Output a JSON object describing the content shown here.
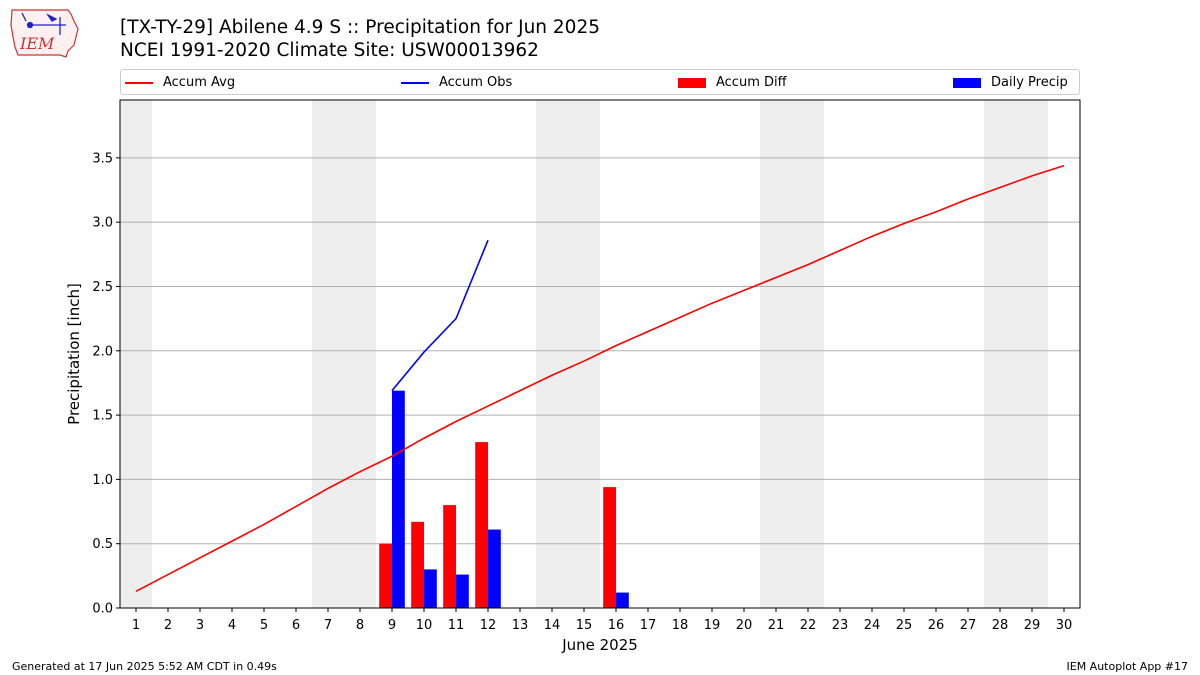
{
  "header": {
    "title_line1": "[TX-TY-29] Abilene 4.9 S :: Precipitation for Jun 2025",
    "title_line2": "NCEI 1991-2020 Climate Site: USW00013962",
    "logo_text": "IEM"
  },
  "footer": {
    "generated": "Generated at 17 Jun 2025 5:52 AM CDT in 0.49s",
    "app": "IEM Autoplot App #17"
  },
  "legend": {
    "placement": "top",
    "items": [
      {
        "label": "Accum Avg",
        "color": "#ff0000",
        "kind": "line"
      },
      {
        "label": "Accum Obs",
        "color": "#0000ff",
        "kind": "line"
      },
      {
        "label": "Accum Diff",
        "color": "#ff0000",
        "kind": "bar"
      },
      {
        "label": "Daily Precip",
        "color": "#0000ff",
        "kind": "bar"
      }
    ]
  },
  "chart_data": {
    "type": "bar",
    "xlabel": "June 2025",
    "ylabel": "Precipitation [inch]",
    "xlim": [
      0.5,
      30.5
    ],
    "ylim": [
      0,
      3.95
    ],
    "yticks": [
      0.0,
      0.5,
      1.0,
      1.5,
      2.0,
      2.5,
      3.0,
      3.5
    ],
    "ytick_labels": [
      "0.0",
      "0.5",
      "1.0",
      "1.5",
      "2.0",
      "2.5",
      "3.0",
      "3.5"
    ],
    "x": [
      1,
      2,
      3,
      4,
      5,
      6,
      7,
      8,
      9,
      10,
      11,
      12,
      13,
      14,
      15,
      16,
      17,
      18,
      19,
      20,
      21,
      22,
      23,
      24,
      25,
      26,
      27,
      28,
      29,
      30
    ],
    "xtick_labels": [
      "1",
      "2",
      "3",
      "4",
      "5",
      "6",
      "7",
      "8",
      "9",
      "10",
      "11",
      "12",
      "13",
      "14",
      "15",
      "16",
      "17",
      "18",
      "19",
      "20",
      "21",
      "22",
      "23",
      "24",
      "25",
      "26",
      "27",
      "28",
      "29",
      "30"
    ],
    "grid": "horizontal",
    "weekend_shading": [
      [
        0.5,
        1.5
      ],
      [
        6.5,
        8.5
      ],
      [
        13.5,
        15.5
      ],
      [
        20.5,
        22.5
      ],
      [
        27.5,
        29.5
      ]
    ],
    "shading_color": "#eeeeee",
    "series": [
      {
        "name": "Accum Avg",
        "kind": "line",
        "color": "#ff0000",
        "x": [
          1,
          2,
          3,
          4,
          5,
          6,
          7,
          8,
          9,
          10,
          11,
          12,
          13,
          14,
          15,
          16,
          17,
          18,
          19,
          20,
          21,
          22,
          23,
          24,
          25,
          26,
          27,
          28,
          29,
          30
        ],
        "values": [
          0.13,
          0.26,
          0.39,
          0.52,
          0.65,
          0.79,
          0.93,
          1.06,
          1.18,
          1.32,
          1.45,
          1.57,
          1.69,
          1.81,
          1.92,
          2.04,
          2.15,
          2.26,
          2.37,
          2.47,
          2.57,
          2.67,
          2.78,
          2.89,
          2.99,
          3.08,
          3.18,
          3.27,
          3.36,
          3.44
        ]
      },
      {
        "name": "Accum Obs",
        "kind": "line",
        "color": "#0000ff",
        "x": [
          9,
          10,
          11,
          12
        ],
        "values": [
          1.69,
          1.99,
          2.25,
          2.86
        ]
      },
      {
        "name": "Accum Diff",
        "kind": "bar",
        "color": "#ff0000",
        "offset": -0.2,
        "x": [
          9,
          10,
          11,
          12,
          16
        ],
        "values": [
          0.5,
          0.67,
          0.8,
          1.29,
          0.94
        ]
      },
      {
        "name": "Daily Precip",
        "kind": "bar",
        "color": "#0000ff",
        "offset": 0.2,
        "x": [
          9,
          10,
          11,
          12,
          16
        ],
        "values": [
          1.69,
          0.3,
          0.26,
          0.61,
          0.12
        ]
      }
    ]
  }
}
